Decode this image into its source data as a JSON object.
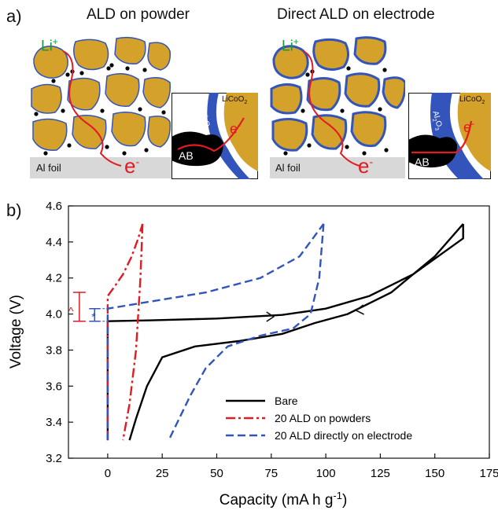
{
  "figure": {
    "panel_a_label": "a)",
    "panel_b_label": "b)",
    "left_title": "ALD on powder",
    "right_title": "Direct ALD on electrode",
    "li_ion": "Li",
    "li_charge": "+",
    "electron": "e",
    "electron_charge": "-",
    "al_foil": "Al foil",
    "ab": "AB",
    "licoo2": "LiCoO",
    "licoo2_sub": "2",
    "al2o3": "Al",
    "al2o3_sub1": "2",
    "al2o3_o": "O",
    "al2o3_sub2": "3",
    "colors": {
      "particle": "#d4a12a",
      "coating": "#3355bb",
      "carbon": "#000000",
      "foil": "#d8d8d8",
      "red": "#e11b22",
      "green": "#1a9a3a"
    }
  },
  "chart_data": {
    "type": "line",
    "xlabel": "Capacity (mA h g",
    "xlabel_sup": "-1",
    "xlabel_end": ")",
    "ylabel": "Voltage (V)",
    "xlim": [
      -18,
      175
    ],
    "ylim": [
      3.2,
      4.6
    ],
    "xticks": [
      "0",
      "25",
      "50",
      "75",
      "100",
      "125",
      "150",
      "175"
    ],
    "xtick_values": [
      0,
      25,
      50,
      75,
      100,
      125,
      150,
      175
    ],
    "yticks": [
      "3.2",
      "3.4",
      "3.6",
      "3.8",
      "4.0",
      "4.2",
      "4.4",
      "4.6"
    ],
    "ytick_values": [
      3.2,
      3.4,
      3.6,
      3.8,
      4.0,
      4.2,
      4.4,
      4.6
    ],
    "annotations": {
      "caret": "^",
      "star": "*"
    },
    "series": [
      {
        "name": "Bare",
        "color": "#000000",
        "dash": "solid",
        "charge": [
          [
            0,
            3.3
          ],
          [
            0,
            3.96
          ],
          [
            20,
            3.965
          ],
          [
            50,
            3.975
          ],
          [
            80,
            3.995
          ],
          [
            100,
            4.03
          ],
          [
            120,
            4.1
          ],
          [
            140,
            4.22
          ],
          [
            163,
            4.42
          ],
          [
            163,
            4.5
          ]
        ],
        "discharge": [
          [
            163,
            4.5
          ],
          [
            150,
            4.32
          ],
          [
            130,
            4.12
          ],
          [
            110,
            4.0
          ],
          [
            95,
            3.95
          ],
          [
            80,
            3.89
          ],
          [
            60,
            3.85
          ],
          [
            40,
            3.82
          ],
          [
            25,
            3.76
          ],
          [
            18,
            3.6
          ],
          [
            13,
            3.42
          ],
          [
            10,
            3.3
          ]
        ]
      },
      {
        "name": "20 ALD on powders",
        "color": "#e11b22",
        "dash": "dashdot",
        "charge": [
          [
            0,
            3.3
          ],
          [
            0,
            4.1
          ],
          [
            3,
            4.15
          ],
          [
            7,
            4.22
          ],
          [
            11,
            4.32
          ],
          [
            14,
            4.42
          ],
          [
            16,
            4.5
          ]
        ],
        "discharge": [
          [
            16,
            4.5
          ],
          [
            15,
            4.2
          ],
          [
            13,
            3.8
          ],
          [
            10,
            3.5
          ],
          [
            7,
            3.3
          ]
        ]
      },
      {
        "name": "20 ALD directly on electrode",
        "color": "#3355bb",
        "dash": "dashed",
        "charge": [
          [
            0,
            3.3
          ],
          [
            0,
            4.03
          ],
          [
            20,
            4.07
          ],
          [
            45,
            4.12
          ],
          [
            70,
            4.2
          ],
          [
            88,
            4.32
          ],
          [
            99,
            4.5
          ]
        ],
        "discharge": [
          [
            99,
            4.5
          ],
          [
            97,
            4.2
          ],
          [
            93,
            4.0
          ],
          [
            85,
            3.92
          ],
          [
            70,
            3.88
          ],
          [
            55,
            3.82
          ],
          [
            45,
            3.7
          ],
          [
            38,
            3.55
          ],
          [
            32,
            3.4
          ],
          [
            28,
            3.3
          ]
        ]
      }
    ],
    "legend_position": "bottom-right"
  }
}
